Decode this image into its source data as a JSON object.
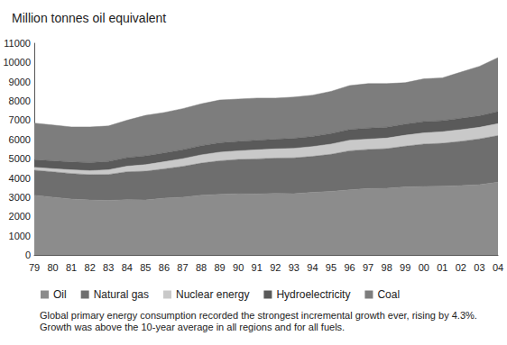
{
  "chart_data": {
    "type": "area",
    "title": "Million tonnes oil equivalent",
    "annotations": [
      "Global primary energy consumption recorded the strongest incremental growth ever, rising by 4.3%. Growth was above the 10-year average in all regions and for all fuels."
    ],
    "stacked": true,
    "grid": false,
    "legend": "bottom",
    "categories": [
      "79",
      "80",
      "81",
      "82",
      "83",
      "84",
      "85",
      "86",
      "87",
      "88",
      "89",
      "90",
      "91",
      "92",
      "93",
      "94",
      "95",
      "96",
      "97",
      "98",
      "99",
      "00",
      "01",
      "02",
      "03",
      "04"
    ],
    "ylim": [
      0,
      11000
    ],
    "yticks": [
      0,
      1000,
      2000,
      3000,
      4000,
      5000,
      6000,
      7000,
      8000,
      9000,
      10000,
      11000
    ],
    "series": [
      {
        "name": "Oil",
        "color": "#8c8c8c",
        "values": [
          3100,
          3000,
          2900,
          2850,
          2830,
          2870,
          2850,
          2950,
          3000,
          3100,
          3150,
          3180,
          3170,
          3200,
          3180,
          3250,
          3300,
          3380,
          3450,
          3460,
          3530,
          3560,
          3570,
          3600,
          3650,
          3780
        ]
      },
      {
        "name": "Natural gas",
        "color": "#6e6e6e",
        "values": [
          1300,
          1320,
          1330,
          1320,
          1350,
          1450,
          1500,
          1520,
          1600,
          1670,
          1740,
          1780,
          1820,
          1830,
          1860,
          1870,
          1930,
          2030,
          2030,
          2060,
          2120,
          2200,
          2230,
          2300,
          2380,
          2420
        ]
      },
      {
        "name": "Nuclear energy",
        "color": "#c9c9c9",
        "values": [
          150,
          160,
          190,
          210,
          240,
          290,
          340,
          370,
          400,
          430,
          450,
          450,
          470,
          480,
          500,
          510,
          530,
          550,
          540,
          550,
          570,
          580,
          600,
          610,
          600,
          620
        ]
      },
      {
        "name": "Hydroelectricity",
        "color": "#5a5a5a",
        "values": [
          400,
          410,
          410,
          420,
          440,
          450,
          460,
          460,
          470,
          480,
          490,
          490,
          500,
          500,
          520,
          530,
          550,
          560,
          570,
          570,
          580,
          590,
          580,
          590,
          600,
          630
        ]
      },
      {
        "name": "Coal",
        "color": "#7d7d7d",
        "values": [
          1900,
          1860,
          1820,
          1850,
          1840,
          1940,
          2100,
          2100,
          2130,
          2170,
          2220,
          2200,
          2190,
          2140,
          2140,
          2140,
          2190,
          2280,
          2310,
          2260,
          2150,
          2220,
          2220,
          2400,
          2570,
          2800
        ]
      }
    ]
  }
}
